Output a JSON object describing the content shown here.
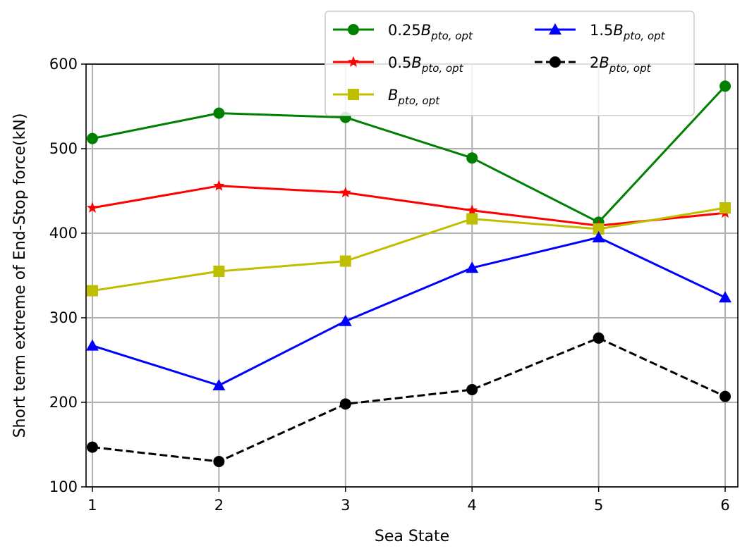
{
  "chart_data": {
    "type": "line",
    "title": "",
    "xlabel": "Sea State",
    "ylabel": "Short term extreme of End-Stop force(kN)",
    "x": [
      1,
      2,
      3,
      4,
      5,
      6
    ],
    "xlim": [
      0.95,
      6.1
    ],
    "ylim": [
      100,
      600
    ],
    "xticks": [
      1,
      2,
      3,
      4,
      5,
      6
    ],
    "yticks": [
      100,
      200,
      300,
      400,
      500,
      600
    ],
    "grid": true,
    "legend_position": "top-right",
    "series": [
      {
        "name": "0.25B",
        "label_prefix": "0.25",
        "label_base": "B",
        "label_sub": "pto, opt",
        "color": "#008000",
        "marker": "circle",
        "dashed": false,
        "values": [
          512,
          542,
          537,
          489,
          413,
          574
        ]
      },
      {
        "name": "0.5B",
        "label_prefix": "0.5",
        "label_base": "B",
        "label_sub": "pto, opt",
        "color": "#ff0000",
        "marker": "star",
        "dashed": false,
        "values": [
          430,
          456,
          448,
          427,
          409,
          424
        ]
      },
      {
        "name": "B",
        "label_prefix": "",
        "label_base": "B",
        "label_sub": "pto, opt",
        "color": "#bfbf00",
        "marker": "square",
        "dashed": false,
        "values": [
          332,
          355,
          367,
          417,
          405,
          430
        ]
      },
      {
        "name": "1.5B",
        "label_prefix": "1.5",
        "label_base": "B",
        "label_sub": "pto, opt",
        "color": "#0000ff",
        "marker": "triangle",
        "dashed": false,
        "values": [
          267,
          220,
          296,
          359,
          395,
          324
        ]
      },
      {
        "name": "2B",
        "label_prefix": "2",
        "label_base": "B",
        "label_sub": "pto, opt",
        "color": "#000000",
        "marker": "circle",
        "dashed": true,
        "values": [
          147,
          130,
          198,
          215,
          276,
          207
        ]
      }
    ]
  }
}
